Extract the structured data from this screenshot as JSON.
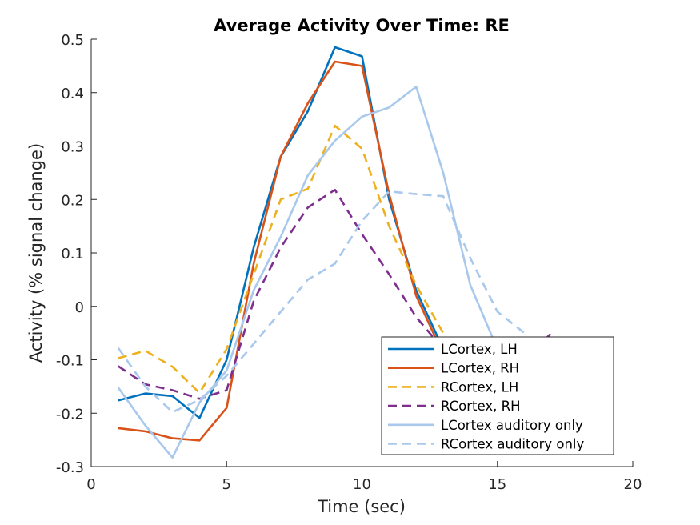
{
  "chart_data": {
    "type": "line",
    "title": "Average Activity Over Time: RE",
    "xlabel": "Time (sec)",
    "ylabel": "Activity (% signal change)",
    "xlim": [
      0,
      20
    ],
    "ylim": [
      -0.3,
      0.5
    ],
    "xticks": [
      0,
      5,
      10,
      15,
      20
    ],
    "xtick_labels": [
      "0",
      "5",
      "10",
      "15",
      "20"
    ],
    "yticks": [
      -0.3,
      -0.2,
      -0.1,
      0,
      0.1,
      0.2,
      0.3,
      0.4,
      0.5
    ],
    "ytick_labels": [
      "-0.3",
      "-0.2",
      "-0.1",
      "0",
      "0.1",
      "0.2",
      "0.3",
      "0.4",
      "0.5"
    ],
    "grid": false,
    "legend_position": "bottom-right",
    "series": [
      {
        "name": "LCortex, LH",
        "color": "#0072BD",
        "style": "solid",
        "x": [
          1,
          2,
          3,
          4,
          5,
          6,
          7,
          8,
          9,
          10,
          11,
          12,
          13
        ],
        "y": [
          -0.176,
          -0.163,
          -0.168,
          -0.209,
          -0.1,
          0.11,
          0.28,
          0.365,
          0.485,
          0.468,
          0.2,
          0.03,
          -0.08
        ]
      },
      {
        "name": "LCortex, RH",
        "color": "#D95319",
        "style": "solid",
        "x": [
          1,
          2,
          3,
          4,
          5,
          6,
          7,
          8,
          9,
          10,
          11,
          12,
          13
        ],
        "y": [
          -0.228,
          -0.234,
          -0.247,
          -0.251,
          -0.19,
          0.08,
          0.28,
          0.38,
          0.458,
          0.45,
          0.21,
          0.02,
          -0.09
        ]
      },
      {
        "name": "RCortex, LH",
        "color": "#EDB120",
        "style": "dashed",
        "x": [
          1,
          2,
          3,
          4,
          5,
          6,
          7,
          8,
          9,
          10,
          11,
          12,
          13
        ],
        "y": [
          -0.097,
          -0.083,
          -0.113,
          -0.162,
          -0.08,
          0.06,
          0.2,
          0.22,
          0.338,
          0.295,
          0.15,
          0.04,
          -0.05
        ]
      },
      {
        "name": "RCortex, RH",
        "color": "#7E2F8E",
        "style": "dashed",
        "x": [
          1,
          2,
          3,
          4,
          5,
          6,
          7,
          8,
          9,
          10,
          11,
          12,
          13,
          14,
          15,
          16,
          17
        ],
        "y": [
          -0.112,
          -0.146,
          -0.157,
          -0.173,
          -0.157,
          0.01,
          0.11,
          0.185,
          0.218,
          0.135,
          0.06,
          -0.02,
          -0.08,
          -0.13,
          -0.15,
          -0.1,
          -0.05
        ]
      },
      {
        "name": "LCortex auditory only",
        "color": "#A8C8EC",
        "style": "solid",
        "x": [
          1,
          2,
          3,
          4,
          5,
          6,
          7,
          8,
          9,
          10,
          11,
          12,
          13,
          14,
          15
        ],
        "y": [
          -0.152,
          -0.223,
          -0.283,
          -0.18,
          -0.12,
          0.03,
          0.13,
          0.245,
          0.31,
          0.355,
          0.372,
          0.411,
          0.25,
          0.04,
          -0.08
        ]
      },
      {
        "name": "RCortex auditory only",
        "color": "#A8C8EC",
        "style": "dashed",
        "x": [
          1,
          2,
          3,
          4,
          5,
          6,
          7,
          8,
          9,
          10,
          11,
          12,
          13,
          14,
          15,
          16
        ],
        "y": [
          -0.078,
          -0.15,
          -0.198,
          -0.175,
          -0.13,
          -0.07,
          -0.01,
          0.05,
          0.08,
          0.16,
          0.215,
          0.21,
          0.206,
          0.09,
          -0.01,
          -0.05
        ]
      }
    ]
  }
}
